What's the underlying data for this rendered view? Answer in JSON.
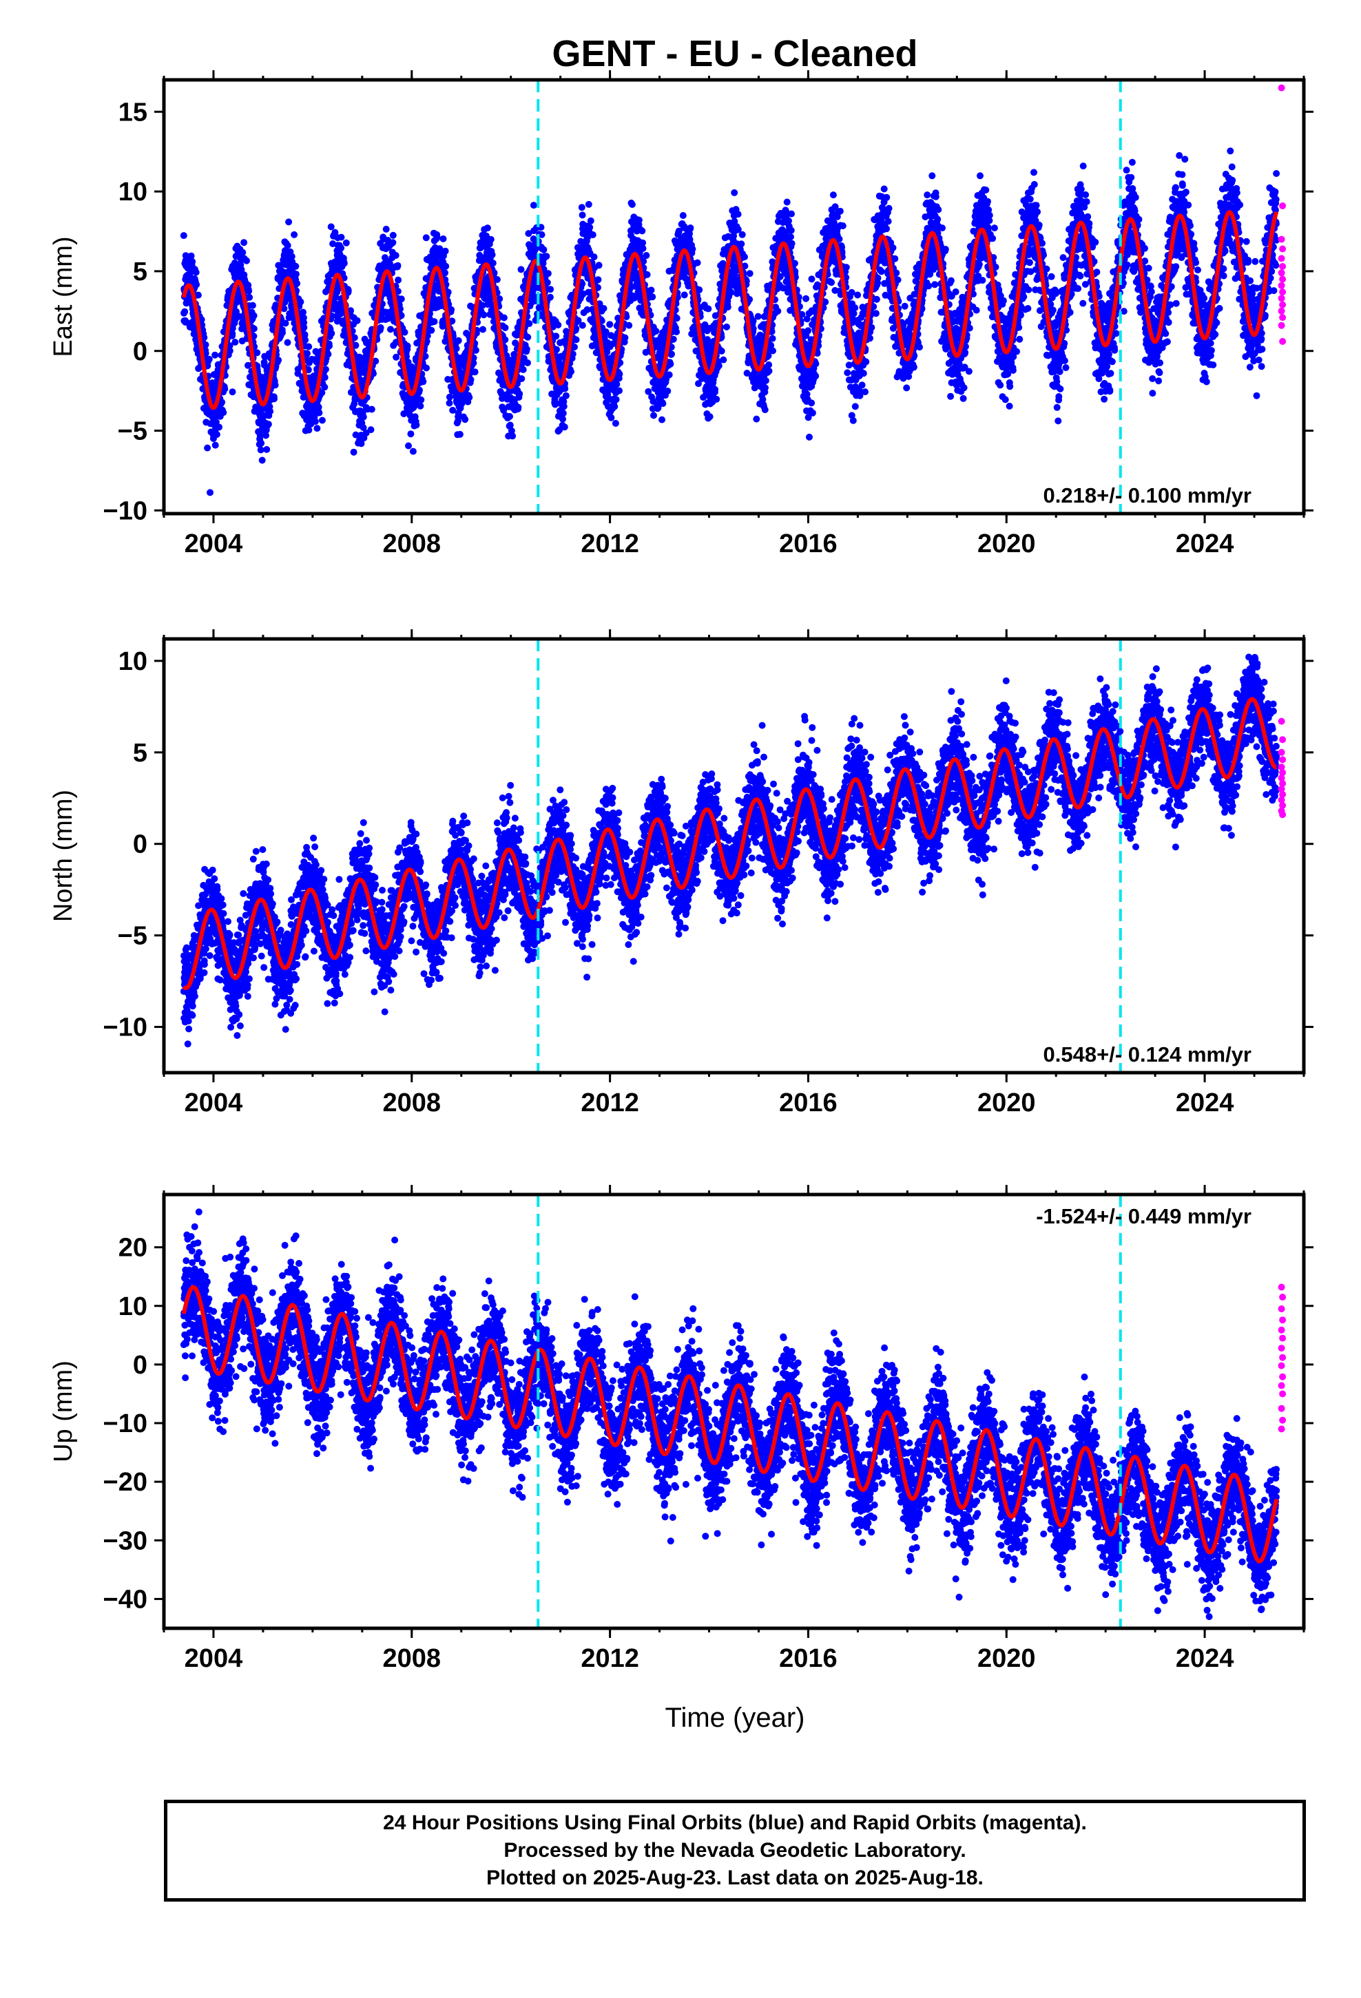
{
  "title": "GENT  - EU - Cleaned",
  "xlabel": "Time (year)",
  "footer": {
    "line1": "24 Hour Positions Using Final Orbits (blue) and Rapid Orbits (magenta).",
    "line2": "Processed by the Nevada Geodetic Laboratory.",
    "line3": "Plotted on 2025-Aug-23. Last data on 2025-Aug-18."
  },
  "colors": {
    "final_orbits": "#0000ff",
    "rapid_orbits": "#ff00ff",
    "model": "#ff0000",
    "equipment_change": "#00e5ee"
  },
  "chart_data": [
    {
      "type": "scatter",
      "component": "East",
      "ylabel": "East (mm)",
      "xlim": [
        2003.0,
        2026.0
      ],
      "ylim": [
        -10.2,
        17.0
      ],
      "x_ticks": [
        2004,
        2008,
        2012,
        2016,
        2020,
        2024
      ],
      "y_ticks": [
        -10,
        -5,
        0,
        5,
        10,
        15
      ],
      "rate_text": "0.218+/- 0.100 mm/yr",
      "rate_placement": "bottom-right",
      "rate_mm_yr": 0.218,
      "rate_sigma": 0.1,
      "offset_mm": 0.2,
      "annual_amplitude_mm": 3.9,
      "annual_peak_fraction": 0.5,
      "noise_mm": 1.4,
      "data_start": 2003.4,
      "data_end": 2025.45,
      "equipment_changes": [
        2010.55,
        2022.3
      ],
      "rapid_points": [
        16.5,
        9.1,
        7.0,
        6.4,
        5.8,
        5.3,
        4.9,
        4.5,
        4.1,
        3.7,
        3.3,
        2.9,
        2.5,
        2.1,
        1.6,
        0.6
      ]
    },
    {
      "type": "scatter",
      "component": "North",
      "ylabel": "North (mm)",
      "xlim": [
        2003.0,
        2026.0
      ],
      "ylim": [
        -12.5,
        11.2
      ],
      "x_ticks": [
        2004,
        2008,
        2012,
        2016,
        2020,
        2024
      ],
      "y_ticks": [
        -10,
        -5,
        0,
        5,
        10
      ],
      "rate_text": "0.548+/- 0.124 mm/yr",
      "rate_placement": "bottom-right",
      "rate_mm_yr": 0.548,
      "rate_sigma": 0.124,
      "offset_mm": -5.9,
      "annual_amplitude_mm": 2.0,
      "annual_peak_fraction": 0.95,
      "noise_mm": 1.2,
      "data_start": 2003.4,
      "data_end": 2025.45,
      "equipment_changes": [
        2010.55,
        2022.3
      ],
      "rapid_points": [
        6.7,
        5.7,
        5.0,
        4.6,
        4.2,
        3.9,
        3.6,
        3.3,
        3.0,
        2.7,
        2.4,
        2.1,
        1.8,
        1.6
      ]
    },
    {
      "type": "scatter",
      "component": "Up",
      "ylabel": "Up (mm)",
      "xlim": [
        2003.0,
        2026.0
      ],
      "ylim": [
        -45.0,
        29.0
      ],
      "x_ticks": [
        2004,
        2008,
        2012,
        2016,
        2020,
        2024
      ],
      "y_ticks": [
        -40,
        -30,
        -20,
        -10,
        0,
        10,
        20
      ],
      "rate_text": "-1.524+/- 0.449 mm/yr",
      "rate_placement": "top-right",
      "rate_mm_yr": -1.524,
      "rate_sigma": 0.449,
      "offset_mm": 6.5,
      "annual_amplitude_mm": 7.0,
      "annual_peak_fraction": 0.6,
      "noise_mm": 4.5,
      "data_start": 2003.4,
      "data_end": 2025.45,
      "equipment_changes": [
        2010.55,
        2022.3
      ],
      "rapid_points": [
        13.2,
        11.5,
        9.5,
        7.6,
        5.9,
        4.5,
        2.8,
        1.2,
        -0.2,
        -2.1,
        -3.6,
        -5.0,
        -7.5,
        -9.5,
        -11.0
      ]
    }
  ]
}
